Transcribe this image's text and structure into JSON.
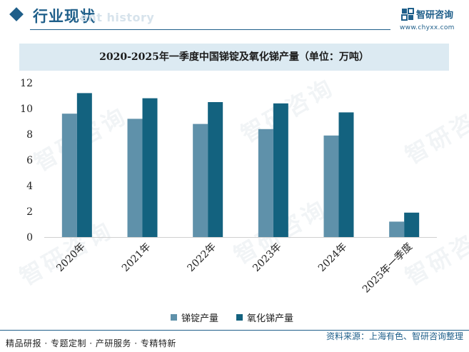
{
  "header": {
    "section_title": "行业现状",
    "watermark_text": "ent history",
    "brand_name": "智研咨询",
    "brand_url": "www.chyxx.com"
  },
  "watermarks": [
    "智研咨询",
    "智研咨询",
    "智研咨询",
    "智研咨询",
    "智研咨询",
    "智研咨询"
  ],
  "chart_data": {
    "type": "bar",
    "title": "2020-2025年一季度中国锑锭及氧化锑产量（单位：万吨）",
    "categories": [
      "2020年",
      "2021年",
      "2022年",
      "2023年",
      "2024年",
      "2025年一季度"
    ],
    "series": [
      {
        "name": "锑锭产量",
        "values": [
          9.6,
          9.2,
          8.8,
          8.4,
          7.9,
          1.2
        ],
        "color": "#5f91aa"
      },
      {
        "name": "氧化锑产量",
        "values": [
          11.2,
          10.8,
          10.5,
          10.4,
          9.7,
          1.9
        ],
        "color": "#13627f"
      }
    ],
    "ylim": [
      0,
      12
    ],
    "yticks": [
      "0",
      "2",
      "4",
      "6",
      "8",
      "10",
      "12"
    ],
    "legend_position": "bottom-center",
    "grid": false
  },
  "footer": {
    "left_text": "精品研报 · 专题定制 · 产研服务 · 专精特新",
    "source_text": "资料来源：上海有色、智研咨询整理"
  }
}
